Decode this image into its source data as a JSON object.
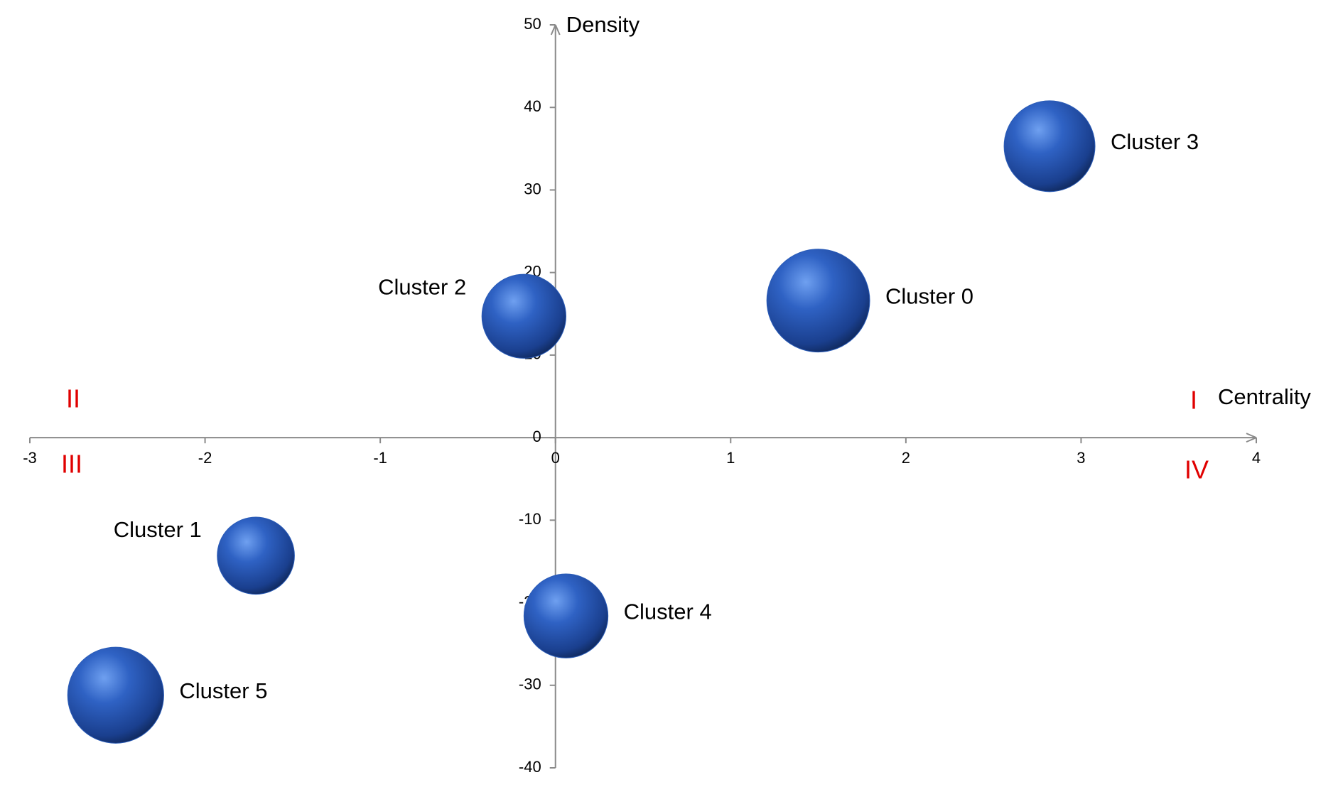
{
  "chart_data": {
    "type": "bubble",
    "x_label": "Centrality",
    "y_label": "Density",
    "xlim": [
      -3,
      4
    ],
    "xticks": [
      -3,
      -2,
      -1,
      0,
      1,
      2,
      3,
      4
    ],
    "ylim": [
      -40,
      50
    ],
    "yticks": [
      -40,
      -30,
      -20,
      -10,
      0,
      10,
      20,
      30,
      40,
      50
    ],
    "color": "#2a5cb8",
    "series": [
      {
        "name": null,
        "labels": [
          "Cluster 0",
          "Cluster 1",
          "Cluster 2",
          "Cluster 3",
          "Cluster 4",
          "Cluster 5"
        ],
        "x": [
          1.5,
          -1.71,
          -0.18,
          2.82,
          0.06,
          -2.51
        ],
        "values": [
          16.6,
          -14.3,
          14.7,
          35.3,
          -21.6,
          -31.2
        ],
        "sizes": [
          60,
          45,
          49,
          53,
          49,
          56
        ]
      }
    ],
    "annotations": [
      "I",
      "II",
      "III",
      "IV"
    ]
  }
}
